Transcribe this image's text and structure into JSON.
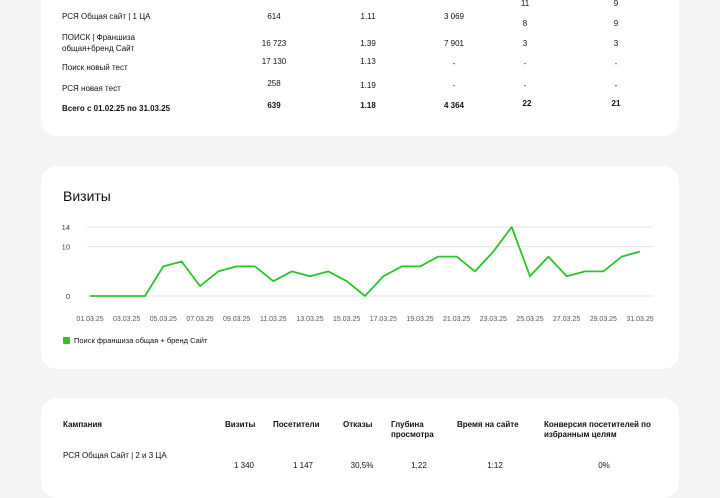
{
  "top_table": {
    "rows": [
      {
        "name": "РСЯ Общая сайт | 1 ЦА",
        "visits": "614",
        "depth": "1.11",
        "time": "3 069",
        "c1": "8",
        "c2": "9",
        "bold": false
      },
      {
        "name": "ПОИСК | Франшиза общая+бренд Сайт",
        "visits": "16 723",
        "depth": "1.39",
        "time": "7 901",
        "c1": "3",
        "c2": "3",
        "bold": false
      },
      {
        "name": "Поиск новый тест",
        "visits": "17 130",
        "depth": "1.13",
        "time": "-",
        "c1": "-",
        "c2": "-",
        "bold": false
      },
      {
        "name": "РСЯ новая тест",
        "visits": "258",
        "depth": "1.19",
        "time": "-",
        "c1": "-",
        "c2": "-",
        "bold": false
      },
      {
        "name": "Всего с 01.02.25 по 31.03.25",
        "visits": "639",
        "depth": "1.18",
        "time": "4 364",
        "c1": "22",
        "c2": "21",
        "bold": true
      }
    ],
    "partial_top": {
      "c1": "11",
      "c2": "9"
    }
  },
  "visits_chart": {
    "title": "Визиты",
    "legend": "Поиск франшиза общая + бренд Сайт"
  },
  "chart_data": {
    "type": "line",
    "title": "Визиты",
    "ylim": [
      0,
      14
    ],
    "yticks": [
      "0",
      "10",
      "14"
    ],
    "xticks": [
      "01.03.25",
      "03.03.25",
      "05.03.25",
      "07.03.25",
      "09.03.25",
      "11.03.25",
      "13.03.25",
      "15.03.25",
      "17.03.25",
      "19.03.25",
      "21.03.25",
      "23.03.25",
      "25.03.25",
      "27.03.25",
      "29.03.25",
      "31.03.25"
    ],
    "series": [
      {
        "name": "Поиск франшиза общая + бренд Сайт",
        "color": "#2ac42a",
        "values": [
          0,
          0,
          0,
          0,
          6,
          7,
          2,
          5,
          6,
          6,
          3,
          5,
          4,
          5,
          3,
          0,
          4,
          6,
          6,
          8,
          8,
          5,
          9,
          14,
          4,
          8,
          4,
          5,
          5,
          8,
          9
        ]
      }
    ],
    "grid": true
  },
  "bottom_table": {
    "headers": {
      "campaign": "Кампания",
      "visits": "Визиты",
      "visitors": "Посетители",
      "bounces": "Отказы",
      "depth": "Глубина просмотра",
      "time": "Время на сайте",
      "conv": "Конверсия посетителей по избранным целям"
    },
    "row": {
      "name": "РСЯ Общая Сайт | 2 и 3 ЦА",
      "visits": "1 340",
      "visitors": "1 147",
      "bounces": "30,5%",
      "depth": "1,22",
      "time": "1:12",
      "conv": "0%"
    }
  }
}
